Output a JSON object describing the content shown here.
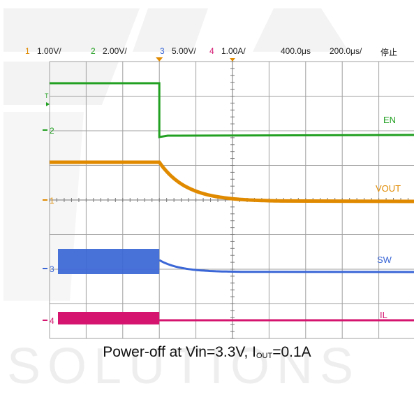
{
  "chart_data": {
    "type": "line",
    "title": "",
    "caption": {
      "prefix": "Power-off at Vin=3.3V, I",
      "sub": "OUT",
      "suffix": "=0.1A"
    },
    "header": {
      "channels": [
        {
          "num": "1",
          "scale": "1.00V/",
          "color": "#e08a00"
        },
        {
          "num": "2",
          "scale": "2.00V/",
          "color": "#22a022"
        },
        {
          "num": "3",
          "scale": "5.00V/",
          "color": "#3a66d6"
        },
        {
          "num": "4",
          "scale": "1.00A/",
          "color": "#d4146e"
        }
      ],
      "timebase_delay": "400.0μs",
      "timebase": "200.0μs/",
      "state": "停止"
    },
    "trigger_marker": "T",
    "grid": {
      "divisions_x": 10,
      "divisions_y": 8
    },
    "series": [
      {
        "name": "EN",
        "color": "#22a022",
        "marker": "2",
        "levels": {
          "before": 1.2,
          "after": 0.08
        }
      },
      {
        "name": "VOUT",
        "color": "#e08a00",
        "marker": "1",
        "levels": {
          "before": 3.3,
          "after": 0.0
        }
      },
      {
        "name": "SW",
        "color": "#3a66d6",
        "marker": "3",
        "levels": {
          "before": 3.3,
          "after": 0.0
        }
      },
      {
        "name": "IL",
        "color": "#d4146e",
        "marker": "4",
        "levels": {
          "before": 0.1,
          "after": 0.0
        }
      }
    ],
    "watermark": {
      "letters": "SOLUTIONS"
    }
  }
}
